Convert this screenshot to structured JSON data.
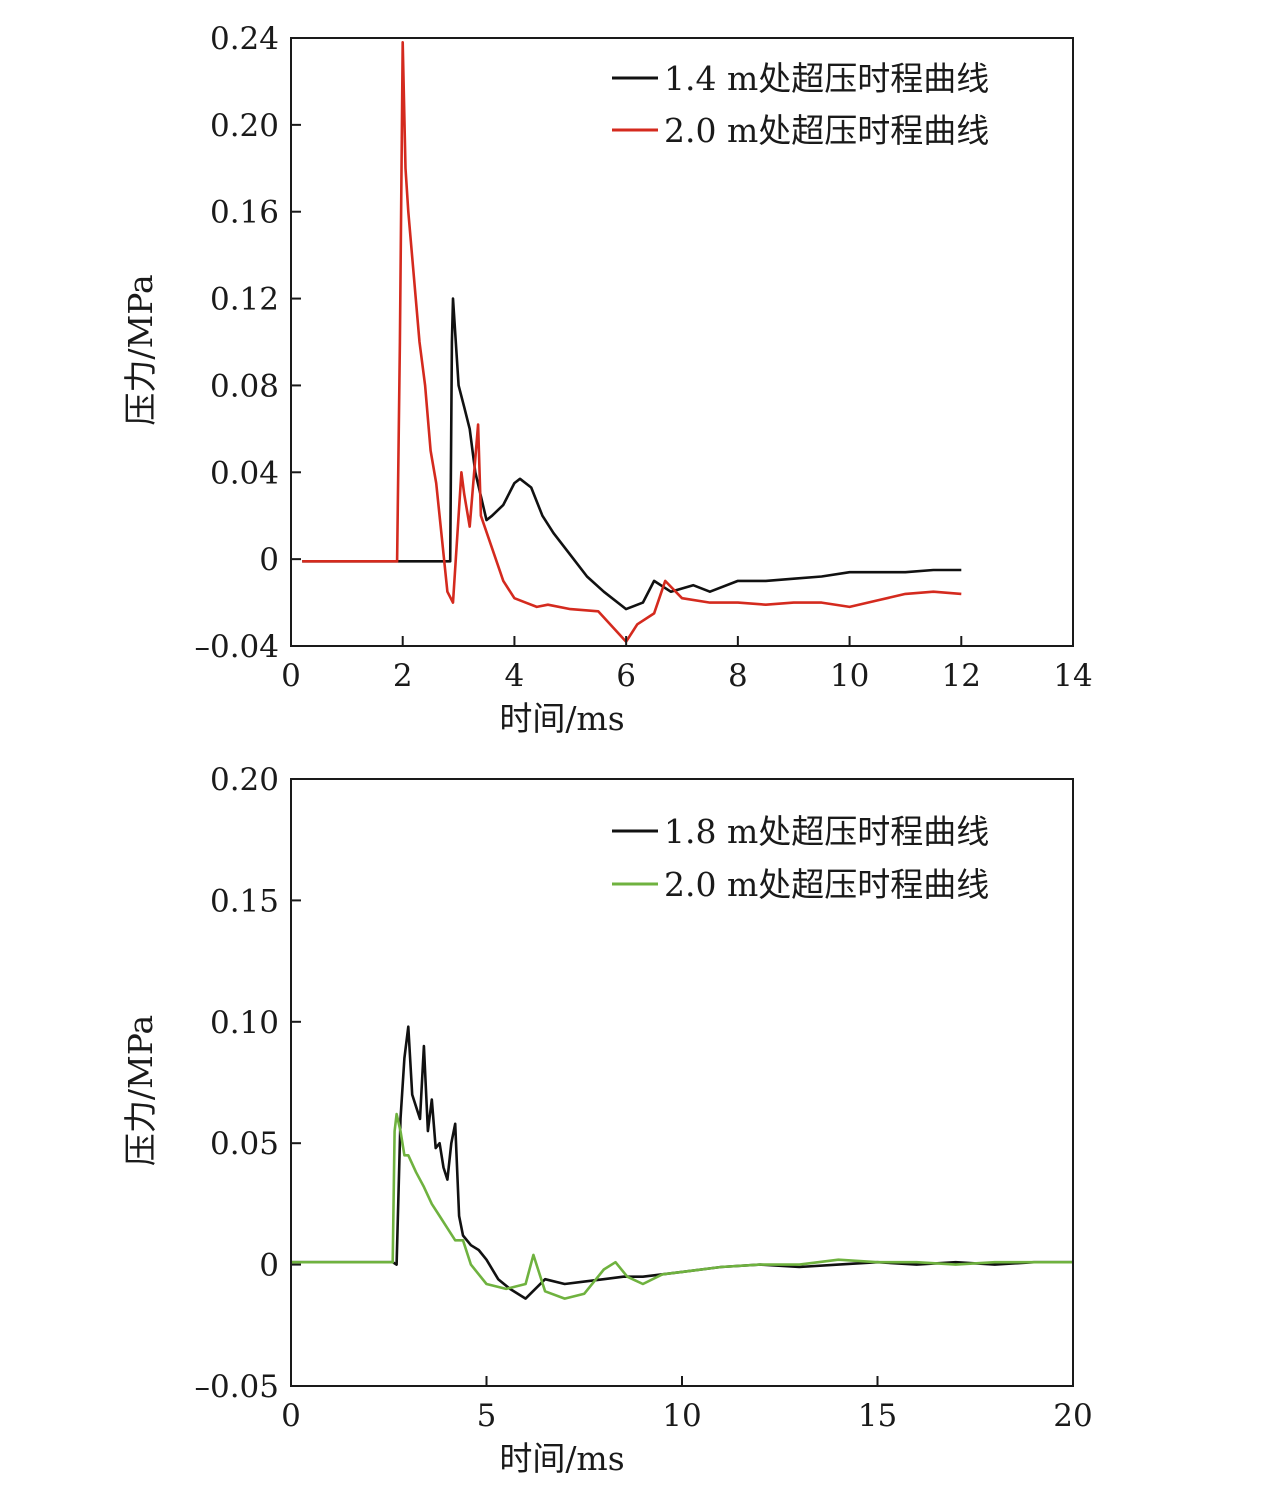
{
  "chart_data": [
    {
      "type": "line",
      "title": "",
      "xlabel": "时间/ms",
      "ylabel": "压力/MPa",
      "xlim": [
        0,
        14
      ],
      "ylim": [
        -0.04,
        0.24
      ],
      "xticks": [
        0,
        2,
        4,
        6,
        8,
        10,
        12,
        14
      ],
      "yticks": [
        -0.04,
        0,
        0.04,
        0.08,
        0.12,
        0.16,
        0.2,
        0.24
      ],
      "xtick_labels": [
        "0",
        "2",
        "4",
        "6",
        "8",
        "10",
        "12",
        "14"
      ],
      "ytick_labels": [
        "–0.04",
        "0",
        "0.04",
        "0.08",
        "0.12",
        "0.16",
        "0.20",
        "0.24"
      ],
      "grid": false,
      "legend_position": "top-right",
      "series": [
        {
          "name": "1.4 m处超压时程曲线",
          "color": "#111111",
          "x": [
            0.2,
            1.0,
            2.0,
            2.85,
            2.88,
            2.9,
            3.0,
            3.1,
            3.2,
            3.3,
            3.5,
            3.6,
            3.8,
            4.0,
            4.1,
            4.3,
            4.5,
            4.7,
            5.0,
            5.3,
            5.6,
            6.0,
            6.3,
            6.5,
            6.8,
            7.2,
            7.5,
            8.0,
            8.5,
            9.0,
            9.5,
            10.0,
            10.5,
            11.0,
            11.5,
            12.0
          ],
          "y": [
            -0.001,
            -0.001,
            -0.001,
            -0.001,
            0.1,
            0.12,
            0.08,
            0.07,
            0.06,
            0.04,
            0.018,
            0.02,
            0.025,
            0.035,
            0.037,
            0.033,
            0.02,
            0.012,
            0.002,
            -0.008,
            -0.015,
            -0.023,
            -0.02,
            -0.01,
            -0.015,
            -0.012,
            -0.015,
            -0.01,
            -0.01,
            -0.009,
            -0.008,
            -0.006,
            -0.006,
            -0.006,
            -0.005,
            -0.005
          ]
        },
        {
          "name": "2.0 m处超压时程曲线",
          "color": "#d42a1e",
          "x": [
            0.2,
            1.0,
            1.9,
            1.95,
            2.0,
            2.05,
            2.1,
            2.2,
            2.3,
            2.4,
            2.5,
            2.6,
            2.7,
            2.8,
            2.9,
            3.0,
            3.05,
            3.1,
            3.2,
            3.35,
            3.4,
            3.6,
            3.8,
            4.0,
            4.2,
            4.4,
            4.6,
            5.0,
            5.5,
            6.0,
            6.2,
            6.5,
            6.7,
            7.0,
            7.5,
            8.0,
            8.5,
            9.0,
            9.5,
            10.0,
            10.5,
            11.0,
            11.5,
            12.0
          ],
          "y": [
            -0.001,
            -0.001,
            -0.001,
            0.1,
            0.238,
            0.18,
            0.16,
            0.13,
            0.1,
            0.08,
            0.05,
            0.035,
            0.01,
            -0.015,
            -0.02,
            0.02,
            0.04,
            0.03,
            0.015,
            0.062,
            0.02,
            0.005,
            -0.01,
            -0.018,
            -0.02,
            -0.022,
            -0.021,
            -0.023,
            -0.024,
            -0.038,
            -0.03,
            -0.025,
            -0.01,
            -0.018,
            -0.02,
            -0.02,
            -0.021,
            -0.02,
            -0.02,
            -0.022,
            -0.019,
            -0.016,
            -0.015,
            -0.016
          ]
        }
      ]
    },
    {
      "type": "line",
      "title": "",
      "xlabel": "时间/ms",
      "ylabel": "压力/MPa",
      "xlim": [
        0,
        20
      ],
      "ylim": [
        -0.05,
        0.2
      ],
      "xticks": [
        0,
        5,
        10,
        15,
        20
      ],
      "yticks": [
        -0.05,
        0,
        0.05,
        0.1,
        0.15,
        0.2
      ],
      "xtick_labels": [
        "0",
        "5",
        "10",
        "15",
        "20"
      ],
      "ytick_labels": [
        "–0.05",
        "0",
        "0.05",
        "0.10",
        "0.15",
        "0.20"
      ],
      "grid": false,
      "legend_position": "top-right",
      "series": [
        {
          "name": "1.8 m处超压时程曲线",
          "color": "#111111",
          "x": [
            0,
            1.0,
            2.6,
            2.7,
            2.8,
            2.9,
            3.0,
            3.1,
            3.2,
            3.3,
            3.4,
            3.5,
            3.6,
            3.7,
            3.8,
            3.9,
            4.0,
            4.1,
            4.2,
            4.3,
            4.4,
            4.6,
            4.8,
            5.0,
            5.3,
            5.6,
            6.0,
            6.5,
            7.0,
            7.5,
            8.0,
            8.5,
            9.0,
            9.5,
            10.0,
            11.0,
            12.0,
            13.0,
            14.0,
            15.0,
            16.0,
            17.0,
            18.0,
            19.0,
            20.0
          ],
          "y": [
            0.001,
            0.001,
            0.001,
            0.0,
            0.06,
            0.085,
            0.098,
            0.07,
            0.065,
            0.06,
            0.09,
            0.055,
            0.068,
            0.048,
            0.05,
            0.04,
            0.035,
            0.05,
            0.058,
            0.02,
            0.012,
            0.008,
            0.006,
            0.002,
            -0.006,
            -0.01,
            -0.014,
            -0.006,
            -0.008,
            -0.007,
            -0.006,
            -0.005,
            -0.005,
            -0.004,
            -0.003,
            -0.001,
            0.0,
            -0.001,
            0.0,
            0.001,
            0.0,
            0.001,
            0.0,
            0.001,
            0.001
          ]
        },
        {
          "name": "2.0 m处超压时程曲线",
          "color": "#6fb23f",
          "x": [
            0,
            1.0,
            2.6,
            2.65,
            2.7,
            2.8,
            2.9,
            3.0,
            3.2,
            3.4,
            3.6,
            3.8,
            4.0,
            4.2,
            4.4,
            4.6,
            4.8,
            5.0,
            5.5,
            6.0,
            6.2,
            6.5,
            7.0,
            7.5,
            8.0,
            8.3,
            8.6,
            9.0,
            9.5,
            10.0,
            11.0,
            12.0,
            13.0,
            14.0,
            15.0,
            16.0,
            17.0,
            18.0,
            19.0,
            20.0
          ],
          "y": [
            0.001,
            0.001,
            0.001,
            0.055,
            0.062,
            0.055,
            0.045,
            0.045,
            0.038,
            0.032,
            0.025,
            0.02,
            0.015,
            0.01,
            0.01,
            0.0,
            -0.004,
            -0.008,
            -0.01,
            -0.008,
            0.004,
            -0.011,
            -0.014,
            -0.012,
            -0.002,
            0.001,
            -0.005,
            -0.008,
            -0.004,
            -0.003,
            -0.001,
            0.0,
            0.0,
            0.002,
            0.001,
            0.001,
            0.0,
            0.001,
            0.001,
            0.001
          ]
        }
      ]
    }
  ]
}
